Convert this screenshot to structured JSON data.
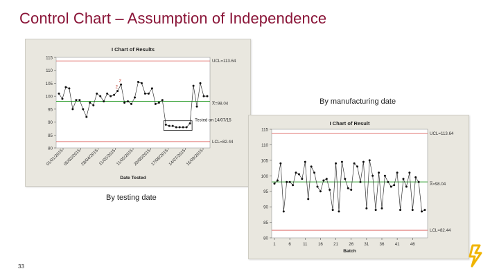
{
  "slide": {
    "title": "Control Chart – Assumption of Independence",
    "page_number": "33",
    "caption_manufacturing": "By manufacturing date",
    "caption_testing": "By testing date"
  },
  "colors": {
    "title": "#8a1538",
    "control_limit": "#d9534f",
    "center_line": "#2e9e2e",
    "data_line": "#333333",
    "highlight_box": "#c0392b",
    "logo": "#f0b400"
  },
  "chart_data": [
    {
      "type": "line",
      "title": "I Chart of Results",
      "xlabel": "Date Tested",
      "ylabel": "",
      "ylim": [
        80,
        115
      ],
      "yticks": [
        "80",
        "85",
        "90",
        "95",
        "100",
        "105",
        "110",
        "115"
      ],
      "xtick_labels": [
        "01/01/2015",
        "05/02/2015",
        "28/04/2015",
        "11/05/2015",
        "11/05/2015",
        "20/05/2015",
        "17/06/2015",
        "14/07/2015",
        "16/09/2015"
      ],
      "ucl": 113.64,
      "center": 98.04,
      "lcl": 82.44,
      "ucl_label": "UCL=113.64",
      "center_label": "X̅=98.04",
      "lcl_label": "LCL=82.44",
      "annotation": "Tested on 14/07/15",
      "point_labels": [
        {
          "index": 17,
          "text": "2"
        },
        {
          "index": 18,
          "text": "2"
        }
      ],
      "values": [
        101,
        99,
        103.5,
        103,
        95,
        98.5,
        98.5,
        95,
        92,
        97.5,
        96.5,
        101,
        100,
        98,
        101,
        100,
        100.5,
        102,
        104.5,
        97.5,
        98,
        97,
        99.5,
        105.5,
        105,
        101,
        101,
        103,
        97,
        97.5,
        98.5,
        89,
        88.5,
        88.5,
        88,
        88,
        88,
        88,
        89.5,
        104,
        96,
        105,
        100,
        100
      ]
    },
    {
      "type": "line",
      "title": "I Chart of Result",
      "xlabel": "Batch",
      "ylabel": "",
      "ylim": [
        80,
        115
      ],
      "yticks": [
        "80",
        "85",
        "90",
        "95",
        "100",
        "105",
        "110",
        "115"
      ],
      "xticks": [
        "1",
        "6",
        "11",
        "16",
        "21",
        "26",
        "31",
        "36",
        "41",
        "46"
      ],
      "ucl": 113.64,
      "center": 98.04,
      "lcl": 82.44,
      "ucl_label": "UCL=113.64",
      "center_label": "X̅=98.04",
      "lcl_label": "LCL=82.44",
      "values": [
        97.5,
        98.5,
        104,
        88.5,
        98,
        98,
        97,
        101,
        100.5,
        99,
        104.5,
        92.5,
        103,
        101,
        96.5,
        95,
        98.5,
        99,
        95.5,
        89,
        104,
        88.5,
        104.5,
        99,
        96,
        95.5,
        104,
        103,
        98,
        104.5,
        89.5,
        105,
        100,
        89,
        101,
        89.5,
        100,
        98,
        96.5,
        97,
        101,
        89,
        99,
        96.5,
        101,
        89,
        99.5,
        98,
        88.5,
        89
      ]
    }
  ]
}
